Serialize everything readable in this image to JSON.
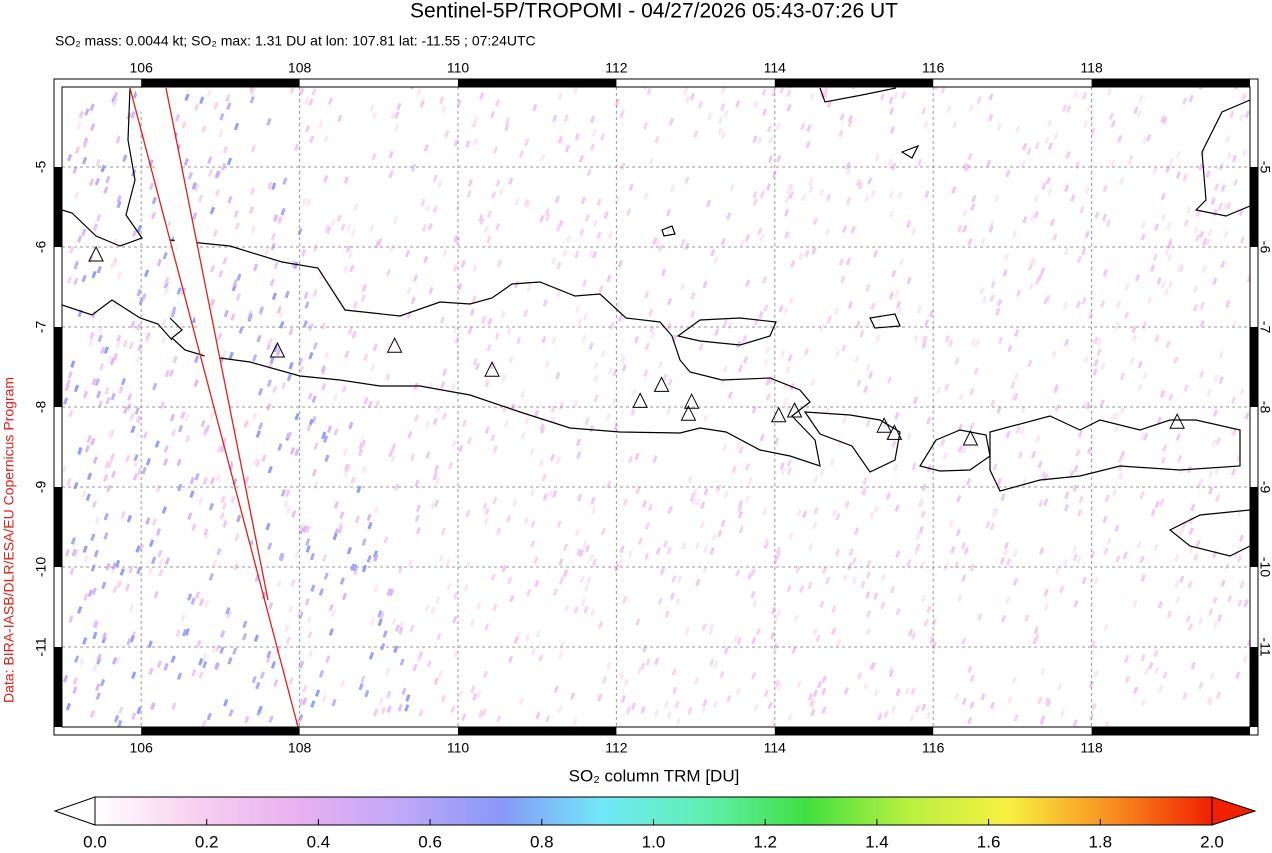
{
  "chart_data": {
    "type": "map",
    "title": "Sentinel-5P/TROPOMI - 04/27/2026 05:43-07:26 UT",
    "subtitle": "SO₂ mass: 0.0044 kt; SO₂ max: 1.31 DU at lon: 107.81 lat: -11.55 ; 07:24UTC",
    "credit": "Data: BIRA-IASB/DLR/ESA/EU Copernicus Program",
    "xlim": [
      105,
      120
    ],
    "ylim": [
      -12,
      -4
    ],
    "xticks": [
      106,
      108,
      110,
      112,
      114,
      116,
      118
    ],
    "yticks": [
      -11,
      -10,
      -9,
      -8,
      -7,
      -6,
      -5
    ],
    "grid": true,
    "volcanoes": {
      "lon": [
        105.43,
        107.72,
        109.2,
        110.43,
        112.3,
        112.57,
        112.95,
        112.91,
        114.05,
        114.25,
        115.38,
        115.51,
        116.47,
        119.08
      ],
      "lat": [
        -6.1,
        -7.3,
        -7.24,
        -7.54,
        -7.93,
        -7.73,
        -7.94,
        -8.09,
        -8.11,
        -8.05,
        -8.24,
        -8.33,
        -8.4,
        -8.19
      ]
    },
    "colorbar": {
      "label": "SO₂ column TRM [DU]",
      "lim": [
        0,
        2
      ],
      "ticks": [
        {
          "value": 0,
          "label": "0.0"
        },
        0.2,
        0.4,
        0.6,
        0.8,
        {
          "value": 1,
          "label": "1.0"
        },
        1.2,
        1.4,
        1.6,
        1.8,
        {
          "value": 2,
          "label": "2.0"
        }
      ],
      "colors": [
        "#ffffff",
        "#f8d0f0",
        "#e8b0f0",
        "#c0a8f8",
        "#8898f8",
        "#70e8f8",
        "#60f0b0",
        "#40e040",
        "#b8f040",
        "#f8f040",
        "#f89020",
        "#f02000"
      ]
    }
  }
}
